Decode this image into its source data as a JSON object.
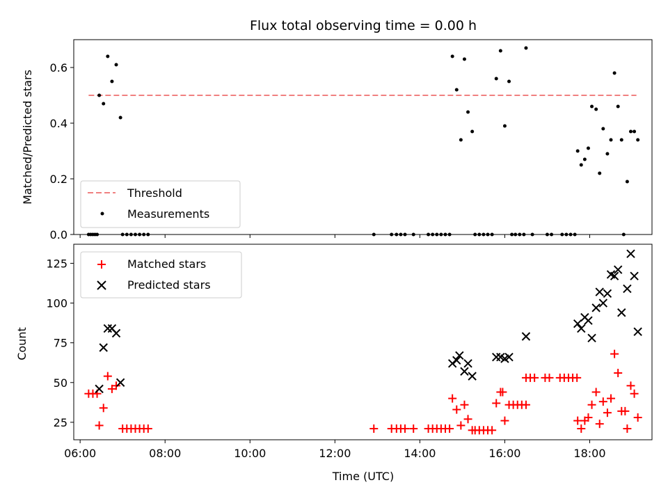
{
  "chart_data": [
    {
      "type": "scatter",
      "title": "Flux total observing time = 0.00 h",
      "xlabel": "",
      "ylabel": "Matched/Predicted stars",
      "xlim": [
        "05:51",
        "19:28"
      ],
      "ylim": [
        0,
        0.7
      ],
      "yticks": [
        "0.0",
        "0.2",
        "0.4",
        "0.6"
      ],
      "grid": false,
      "legend_placement": "lower-left",
      "legend": [
        "Threshold",
        "Measurements"
      ],
      "threshold": {
        "name": "Threshold",
        "value": 0.5,
        "x_start": "06:12",
        "x_end": "19:06",
        "color": "#f08080"
      },
      "series": [
        {
          "name": "Measurements",
          "color": "#000000",
          "points": [
            [
              "06:12",
              0.0
            ],
            [
              "06:15",
              0.0
            ],
            [
              "06:18",
              0.0
            ],
            [
              "06:21",
              0.0
            ],
            [
              "06:24",
              0.0
            ],
            [
              "06:27",
              0.5
            ],
            [
              "06:33",
              0.47
            ],
            [
              "06:39",
              0.64
            ],
            [
              "06:45",
              0.55
            ],
            [
              "06:51",
              0.61
            ],
            [
              "06:57",
              0.42
            ],
            [
              "07:00",
              0.0
            ],
            [
              "07:06",
              0.0
            ],
            [
              "07:12",
              0.0
            ],
            [
              "07:18",
              0.0
            ],
            [
              "07:24",
              0.0
            ],
            [
              "07:30",
              0.0
            ],
            [
              "07:36",
              0.0
            ],
            [
              "12:55",
              0.0
            ],
            [
              "13:20",
              0.0
            ],
            [
              "13:27",
              0.0
            ],
            [
              "13:33",
              0.0
            ],
            [
              "13:39",
              0.0
            ],
            [
              "13:51",
              0.0
            ],
            [
              "14:12",
              0.0
            ],
            [
              "14:18",
              0.0
            ],
            [
              "14:24",
              0.0
            ],
            [
              "14:30",
              0.0
            ],
            [
              "14:36",
              0.0
            ],
            [
              "14:42",
              0.0
            ],
            [
              "14:46",
              0.64
            ],
            [
              "14:52",
              0.52
            ],
            [
              "14:58",
              0.34
            ],
            [
              "15:03",
              0.63
            ],
            [
              "15:08",
              0.44
            ],
            [
              "15:14",
              0.37
            ],
            [
              "15:18",
              0.0
            ],
            [
              "15:24",
              0.0
            ],
            [
              "15:30",
              0.0
            ],
            [
              "15:36",
              0.0
            ],
            [
              "15:42",
              0.0
            ],
            [
              "15:48",
              0.56
            ],
            [
              "15:54",
              0.66
            ],
            [
              "16:00",
              0.39
            ],
            [
              "16:06",
              0.55
            ],
            [
              "16:10",
              0.0
            ],
            [
              "16:15",
              0.0
            ],
            [
              "16:21",
              0.0
            ],
            [
              "16:27",
              0.0
            ],
            [
              "16:30",
              0.67
            ],
            [
              "16:39",
              0.0
            ],
            [
              "17:00",
              0.0
            ],
            [
              "17:06",
              0.0
            ],
            [
              "17:21",
              0.0
            ],
            [
              "17:27",
              0.0
            ],
            [
              "17:33",
              0.0
            ],
            [
              "17:39",
              0.0
            ],
            [
              "17:43",
              0.3
            ],
            [
              "17:48",
              0.25
            ],
            [
              "17:53",
              0.27
            ],
            [
              "17:58",
              0.31
            ],
            [
              "18:03",
              0.46
            ],
            [
              "18:09",
              0.45
            ],
            [
              "18:14",
              0.22
            ],
            [
              "18:19",
              0.38
            ],
            [
              "18:25",
              0.29
            ],
            [
              "18:30",
              0.34
            ],
            [
              "18:35",
              0.58
            ],
            [
              "18:40",
              0.46
            ],
            [
              "18:45",
              0.34
            ],
            [
              "18:48",
              0.0
            ],
            [
              "18:53",
              0.19
            ],
            [
              "18:58",
              0.37
            ],
            [
              "19:03",
              0.37
            ],
            [
              "19:08",
              0.34
            ]
          ]
        }
      ]
    },
    {
      "type": "scatter",
      "title": "",
      "xlabel": "Time (UTC)",
      "ylabel": "Count",
      "xlim": [
        "05:51",
        "19:28"
      ],
      "ylim": [
        14,
        137
      ],
      "xticks": [
        "06:00",
        "08:00",
        "10:00",
        "12:00",
        "14:00",
        "16:00",
        "18:00"
      ],
      "yticks": [
        "25",
        "50",
        "75",
        "100",
        "125"
      ],
      "grid": false,
      "legend_placement": "top-left",
      "legend": [
        "Matched stars",
        "Predicted stars"
      ],
      "series": [
        {
          "name": "Matched stars",
          "marker": "plus",
          "color": "#ff0000",
          "points": [
            [
              "06:12",
              43
            ],
            [
              "06:18",
              43
            ],
            [
              "06:24",
              43
            ],
            [
              "06:27",
              23
            ],
            [
              "06:33",
              34
            ],
            [
              "06:39",
              54
            ],
            [
              "06:45",
              46
            ],
            [
              "06:51",
              48
            ],
            [
              "07:00",
              21
            ],
            [
              "07:06",
              21
            ],
            [
              "07:12",
              21
            ],
            [
              "07:18",
              21
            ],
            [
              "07:24",
              21
            ],
            [
              "07:30",
              21
            ],
            [
              "07:36",
              21
            ],
            [
              "12:55",
              21
            ],
            [
              "13:20",
              21
            ],
            [
              "13:27",
              21
            ],
            [
              "13:33",
              21
            ],
            [
              "13:39",
              21
            ],
            [
              "13:51",
              21
            ],
            [
              "14:12",
              21
            ],
            [
              "14:18",
              21
            ],
            [
              "14:24",
              21
            ],
            [
              "14:30",
              21
            ],
            [
              "14:36",
              21
            ],
            [
              "14:42",
              21
            ],
            [
              "14:46",
              40
            ],
            [
              "14:52",
              33
            ],
            [
              "14:58",
              23
            ],
            [
              "15:03",
              36
            ],
            [
              "15:08",
              27
            ],
            [
              "15:14",
              20
            ],
            [
              "15:18",
              20
            ],
            [
              "15:24",
              20
            ],
            [
              "15:30",
              20
            ],
            [
              "15:36",
              20
            ],
            [
              "15:42",
              20
            ],
            [
              "15:48",
              37
            ],
            [
              "15:54",
              44
            ],
            [
              "15:57",
              44
            ],
            [
              "16:00",
              26
            ],
            [
              "16:06",
              36
            ],
            [
              "16:12",
              36
            ],
            [
              "16:18",
              36
            ],
            [
              "16:24",
              36
            ],
            [
              "16:30",
              36
            ],
            [
              "16:30",
              53
            ],
            [
              "16:36",
              53
            ],
            [
              "16:42",
              53
            ],
            [
              "16:57",
              53
            ],
            [
              "17:03",
              53
            ],
            [
              "17:18",
              53
            ],
            [
              "17:24",
              53
            ],
            [
              "17:30",
              53
            ],
            [
              "17:36",
              53
            ],
            [
              "17:42",
              53
            ],
            [
              "17:43",
              26
            ],
            [
              "17:48",
              21
            ],
            [
              "17:53",
              26
            ],
            [
              "17:58",
              28
            ],
            [
              "18:03",
              36
            ],
            [
              "18:09",
              44
            ],
            [
              "18:14",
              24
            ],
            [
              "18:19",
              38
            ],
            [
              "18:25",
              31
            ],
            [
              "18:30",
              40
            ],
            [
              "18:35",
              68
            ],
            [
              "18:40",
              56
            ],
            [
              "18:45",
              32
            ],
            [
              "18:50",
              32
            ],
            [
              "18:53",
              21
            ],
            [
              "18:58",
              48
            ],
            [
              "19:03",
              43
            ],
            [
              "19:08",
              28
            ]
          ]
        },
        {
          "name": "Predicted stars",
          "marker": "x",
          "color": "#000000",
          "points": [
            [
              "06:27",
              46
            ],
            [
              "06:33",
              72
            ],
            [
              "06:39",
              84
            ],
            [
              "06:45",
              84
            ],
            [
              "06:51",
              81
            ],
            [
              "06:57",
              50
            ],
            [
              "14:46",
              62
            ],
            [
              "14:52",
              64
            ],
            [
              "14:56",
              67
            ],
            [
              "15:03",
              57
            ],
            [
              "15:08",
              62
            ],
            [
              "15:14",
              54
            ],
            [
              "15:48",
              66
            ],
            [
              "15:54",
              66
            ],
            [
              "16:00",
              65
            ],
            [
              "16:06",
              66
            ],
            [
              "16:30",
              79
            ],
            [
              "17:43",
              87
            ],
            [
              "17:48",
              84
            ],
            [
              "17:53",
              91
            ],
            [
              "17:58",
              89
            ],
            [
              "18:03",
              78
            ],
            [
              "18:09",
              97
            ],
            [
              "18:14",
              107
            ],
            [
              "18:19",
              100
            ],
            [
              "18:25",
              106
            ],
            [
              "18:30",
              118
            ],
            [
              "18:35",
              117
            ],
            [
              "18:40",
              121
            ],
            [
              "18:45",
              94
            ],
            [
              "18:53",
              109
            ],
            [
              "18:58",
              131
            ],
            [
              "19:03",
              117
            ],
            [
              "19:08",
              82
            ]
          ]
        }
      ]
    }
  ]
}
